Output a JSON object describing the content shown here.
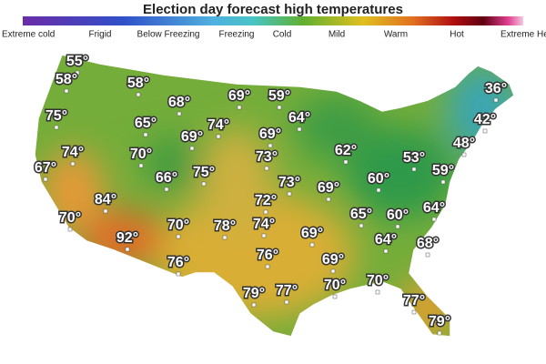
{
  "title": "Election day forecast high temperatures",
  "legend": [
    "Extreme cold",
    "Frigid",
    "Below Freezing",
    "Freezing",
    "Cold",
    "Mild",
    "Warm",
    "Hot",
    "Extreme He"
  ],
  "temperatures": [
    "55°",
    "58°",
    "58°",
    "68°",
    "69°",
    "59°",
    "36°",
    "75°",
    "65°",
    "74°",
    "64°",
    "42°",
    "69°",
    "69°",
    "62°",
    "48°",
    "74°",
    "70°",
    "73°",
    "53°",
    "67°",
    "66°",
    "75°",
    "73°",
    "69°",
    "60°",
    "59°",
    "84°",
    "72°",
    "65°",
    "60°",
    "64°",
    "70°",
    "70°",
    "78°",
    "74°",
    "69°",
    "92°",
    "64°",
    "68°",
    "76°",
    "69°",
    "76°",
    "70°",
    "79°",
    "77°",
    "70°",
    "77°",
    "79°"
  ]
}
